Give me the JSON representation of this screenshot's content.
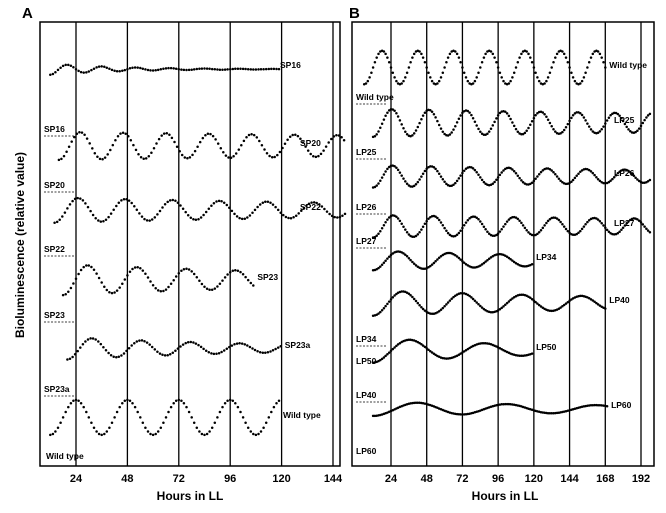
{
  "figure": {
    "ylabel": "Bioluminescence (relative value)"
  },
  "chart_data": [
    {
      "type": "line",
      "panel": "A",
      "xlabel": "Hours in LL",
      "xticks": [
        24,
        48,
        72,
        96,
        120,
        144
      ],
      "xlim": [
        12,
        150
      ],
      "ylabel": "Bioluminescence (relative value)",
      "grid_verticals": [
        24,
        48,
        72,
        96,
        120,
        144
      ],
      "series": [
        {
          "name": "SP16",
          "period_h": 16,
          "start_h": 12,
          "end_h": 120,
          "amplitude": 0.4,
          "damping": 0.03,
          "start_label": "",
          "end_label": "SP16"
        },
        {
          "name": "SP20",
          "period_h": 20,
          "start_h": 16,
          "end_h": 150,
          "amplitude": 1.0,
          "damping": 0.002,
          "start_label": "SP16",
          "end_label": "SP20"
        },
        {
          "name": "SP22",
          "period_h": 22,
          "start_h": 14,
          "end_h": 150,
          "amplitude": 0.9,
          "damping": 0.004,
          "start_label": "SP20",
          "end_label": "SP22"
        },
        {
          "name": "SP23",
          "period_h": 23,
          "start_h": 18,
          "end_h": 108,
          "amplitude": 1.1,
          "damping": 0.006,
          "start_label": "SP22",
          "end_label": "SP23"
        },
        {
          "name": "SP23a",
          "period_h": 23,
          "start_h": 20,
          "end_h": 120,
          "amplitude": 0.8,
          "damping": 0.01,
          "start_label": "SP23",
          "end_label": "SP23a"
        },
        {
          "name": "Wild type",
          "period_h": 24,
          "start_h": 12,
          "end_h": 120,
          "amplitude": 1.25,
          "damping": 0.0,
          "start_label": "SP23a",
          "end_label": "Wild type"
        }
      ],
      "bottom_label": "Wild type"
    },
    {
      "type": "line",
      "panel": "B",
      "xlabel": "Hours in LL",
      "xticks": [
        24,
        48,
        72,
        96,
        120,
        144,
        168,
        192
      ],
      "xlim": [
        4,
        198
      ],
      "ylabel": "Bioluminescence (relative value)",
      "grid_verticals": [
        24,
        48,
        72,
        96,
        120,
        144,
        168,
        192
      ],
      "series": [
        {
          "name": "Wild type",
          "period_h": 24,
          "start_h": 6,
          "end_h": 168,
          "amplitude": 1.2,
          "damping": 0.0,
          "start_label": "Wild type",
          "end_label": "Wild type"
        },
        {
          "name": "LP25",
          "period_h": 25,
          "start_h": 12,
          "end_h": 198,
          "amplitude": 1.0,
          "damping": 0.002,
          "start_label": "",
          "end_label": "LP25"
        },
        {
          "name": "LP26",
          "period_h": 26,
          "start_h": 12,
          "end_h": 198,
          "amplitude": 0.8,
          "damping": 0.003,
          "start_label": "LP25",
          "end_label": "LP26"
        },
        {
          "name": "LP27",
          "period_h": 27,
          "start_h": 12,
          "end_h": 198,
          "amplitude": 0.8,
          "damping": 0.002,
          "start_label": "LP26",
          "end_label": "LP27"
        },
        {
          "name": "LP34",
          "period_h": 34,
          "start_h": 12,
          "end_h": 120,
          "amplitude": 0.7,
          "damping": 0.005,
          "start_label": "LP27",
          "end_label": "LP34"
        },
        {
          "name": "LP40",
          "period_h": 40,
          "start_h": 12,
          "end_h": 168,
          "amplitude": 0.9,
          "damping": 0.004,
          "start_label": "",
          "end_label": "LP40"
        },
        {
          "name": "LP50",
          "period_h": 50,
          "start_h": 12,
          "end_h": 120,
          "amplitude": 0.9,
          "damping": 0.008,
          "start_label": "LP34",
          "end_label": "LP50"
        },
        {
          "name": "LP60",
          "period_h": 60,
          "start_h": 12,
          "end_h": 170,
          "amplitude": 0.5,
          "damping": 0.004,
          "start_label": "LP40",
          "end_label": "LP60"
        }
      ],
      "extra_left_labels": [
        "LP50",
        "LP60"
      ]
    }
  ]
}
